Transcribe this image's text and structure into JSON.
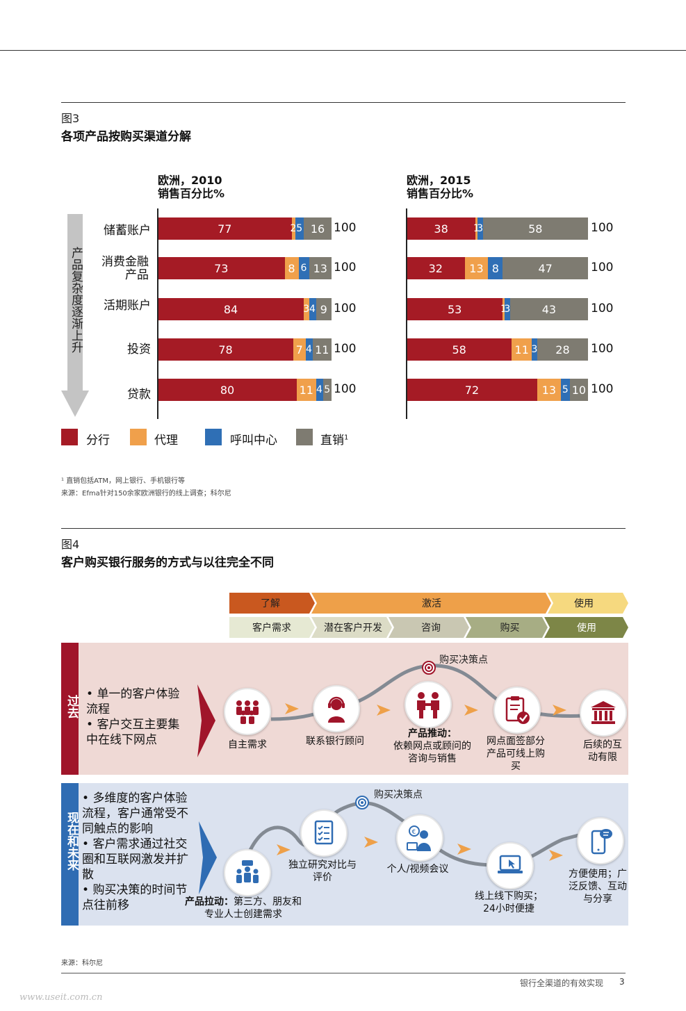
{
  "figure3": {
    "label": "图3",
    "title": "各项产品按购买渠道分解",
    "axis_label": "产品复杂度逐渐上升",
    "charts": [
      {
        "title_line1": "欧洲，2010",
        "title_line2": "销售百分比%"
      },
      {
        "title_line1": "欧洲，2015",
        "title_line2": "销售百分比%"
      }
    ],
    "legend": [
      {
        "label": "分行",
        "color": "#a51b25"
      },
      {
        "label": "代理",
        "color": "#f0a04b"
      },
      {
        "label": "呼叫中心",
        "color": "#2f6fb5"
      },
      {
        "label": "直销",
        "sup": "1",
        "color": "#7e7b71"
      }
    ],
    "footnote": "¹ 直销包括ATM，网上银行、手机银行等",
    "source": "来源：Efma针对150余家欧洲银行的线上调查；科尔尼"
  },
  "chart_data": [
    {
      "type": "bar",
      "title": "欧洲，2010 销售百分比%",
      "categories": [
        "储蓄账户",
        "消费金融产品",
        "活期账户",
        "投资",
        "贷款"
      ],
      "series": [
        {
          "name": "分行",
          "values": [
            77,
            73,
            84,
            78,
            80
          ]
        },
        {
          "name": "代理",
          "values": [
            2,
            8,
            3,
            7,
            11
          ]
        },
        {
          "name": "呼叫中心",
          "values": [
            5,
            6,
            4,
            4,
            4
          ]
        },
        {
          "name": "直销",
          "values": [
            16,
            13,
            9,
            11,
            5
          ]
        }
      ],
      "totals": [
        100,
        100,
        100,
        100,
        100
      ],
      "stacked": true,
      "orientation": "horizontal",
      "xlim": [
        0,
        100
      ]
    },
    {
      "type": "bar",
      "title": "欧洲，2015 销售百分比%",
      "categories": [
        "储蓄账户",
        "消费金融产品",
        "活期账户",
        "投资",
        "贷款"
      ],
      "series": [
        {
          "name": "分行",
          "values": [
            38,
            32,
            53,
            58,
            72
          ]
        },
        {
          "name": "代理",
          "values": [
            1,
            13,
            1,
            11,
            13
          ]
        },
        {
          "name": "呼叫中心",
          "values": [
            3,
            8,
            3,
            3,
            5
          ]
        },
        {
          "name": "直销",
          "values": [
            58,
            47,
            43,
            28,
            10
          ]
        }
      ],
      "totals": [
        100,
        100,
        100,
        100,
        100
      ],
      "stacked": true,
      "orientation": "horizontal",
      "xlim": [
        0,
        100
      ]
    }
  ],
  "row_labels": [
    {
      "line1": "储蓄账户",
      "line2": ""
    },
    {
      "line1": "消费金融",
      "line2": "产品"
    },
    {
      "line1": "活期账户",
      "line2": ""
    },
    {
      "line1": "投资",
      "line2": ""
    },
    {
      "line1": "贷款",
      "line2": ""
    }
  ],
  "figure4": {
    "label": "图4",
    "title": "客户购买银行服务的方式与以往完全不同",
    "phases_top": [
      "了解",
      "激活",
      "使用"
    ],
    "phases_bottom": [
      "客户需求",
      "潜在客户开发",
      "咨询",
      "购买",
      "使用"
    ],
    "past": {
      "tag": "过去",
      "bullets": [
        "单一的客户体验流程",
        "客户交互主要集中在线下网点"
      ],
      "decision": "购买决策点",
      "steps": [
        {
          "icon": "crowd-icon",
          "caption": "自主需求"
        },
        {
          "icon": "headset-agent-icon",
          "caption": "联系银行顾问"
        },
        {
          "icon": "handshake-icon",
          "caption_bold": "产品推动：",
          "caption": "依赖网点或顾问的咨询与销售"
        },
        {
          "icon": "clipboard-check-icon",
          "caption": "网点面签部分产品可线上购买"
        },
        {
          "icon": "bank-icon",
          "caption": "后续的互动有限"
        }
      ]
    },
    "now": {
      "tag": "现在和未来",
      "bullets": [
        "多维度的客户体验流程，客户通常受不同触点的影响",
        "客户需求通过社交圈和互联网激发并扩散",
        "购买决策的时间节点往前移"
      ],
      "decision": "购买决策点",
      "steps": [
        {
          "icon": "group-icon",
          "caption_bold": "产品拉动：",
          "caption": "第三方、朋友和专业人士创建需求"
        },
        {
          "icon": "document-check-icon",
          "caption": "独立研究对比与评价"
        },
        {
          "icon": "video-meeting-icon",
          "caption": "个人/视频会议"
        },
        {
          "icon": "laptop-click-icon",
          "caption": "线上线下购买；24小时便捷"
        },
        {
          "icon": "mobile-chat-icon",
          "caption": "方便使用；广泛反馈、互动与分享"
        }
      ]
    },
    "source": "来源：科尔尼"
  },
  "footer": {
    "text": "银行全渠道的有效实现",
    "page": "3"
  },
  "watermark": "www.useit.com.cn"
}
